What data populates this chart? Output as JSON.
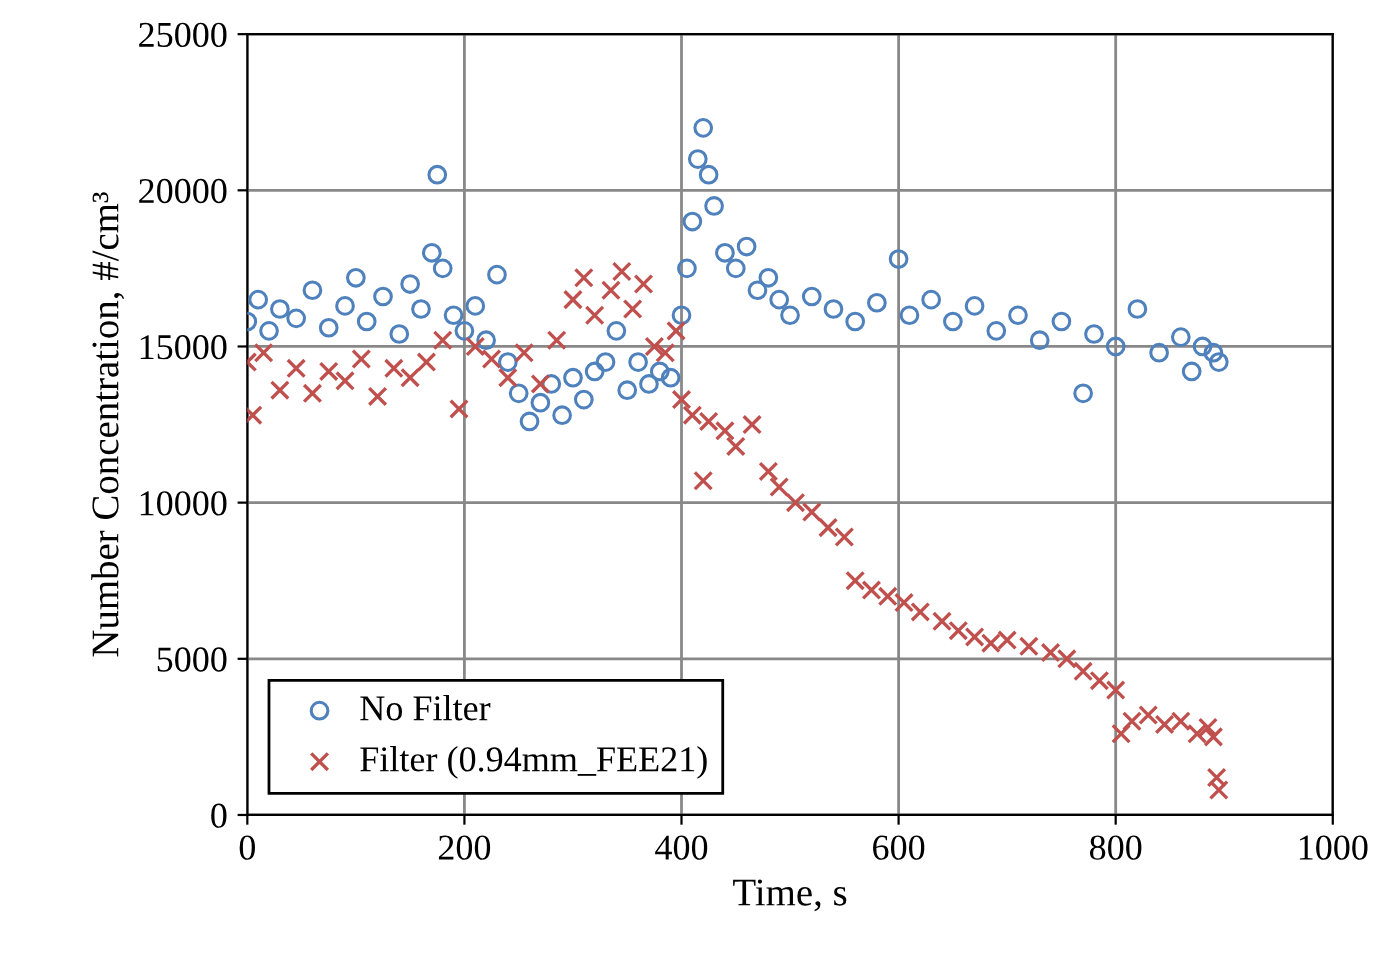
{
  "chart_data": {
    "type": "scatter",
    "xlabel": "Time, s",
    "ylabel": "Number Concentration, #/cm³",
    "xlim": [
      0,
      1000
    ],
    "xticks": [
      0,
      200,
      400,
      600,
      800,
      1000
    ],
    "ylim": [
      0,
      25000
    ],
    "yticks": [
      0,
      5000,
      10000,
      15000,
      20000,
      25000
    ],
    "grid": true,
    "legend": "bottom left",
    "series": [
      {
        "name": "No Filter",
        "color": "#4f81bd",
        "marker": "circle",
        "x": [
          0,
          10,
          20,
          30,
          45,
          60,
          75,
          90,
          100,
          110,
          125,
          140,
          150,
          160,
          170,
          175,
          180,
          190,
          200,
          210,
          220,
          230,
          240,
          250,
          260,
          270,
          280,
          290,
          300,
          310,
          320,
          330,
          340,
          350,
          360,
          370,
          380,
          390,
          400,
          405,
          410,
          415,
          420,
          425,
          430,
          440,
          450,
          460,
          470,
          480,
          490,
          500,
          520,
          540,
          560,
          580,
          600,
          610,
          630,
          650,
          670,
          690,
          710,
          730,
          750,
          770,
          780,
          800,
          820,
          840,
          860,
          870,
          880,
          890,
          895
        ],
        "values": [
          15800,
          16500,
          15500,
          16200,
          15900,
          16800,
          15600,
          16300,
          17200,
          15800,
          16600,
          15400,
          17000,
          16200,
          18000,
          20500,
          17500,
          16000,
          15500,
          16300,
          15200,
          17300,
          14500,
          13500,
          12600,
          13200,
          13800,
          12800,
          14000,
          13300,
          14200,
          14500,
          15500,
          13600,
          14500,
          13800,
          14200,
          14000,
          16000,
          17500,
          19000,
          21000,
          22000,
          20500,
          19500,
          18000,
          17500,
          18200,
          16800,
          17200,
          16500,
          16000,
          16600,
          16200,
          15800,
          16400,
          17800,
          16000,
          16500,
          15800,
          16300,
          15500,
          16000,
          15200,
          15800,
          13500,
          15400,
          15000,
          16200,
          14800,
          15300,
          14200,
          15000,
          14800,
          14500
        ]
      },
      {
        "name": "Filter (0.94mm_FEE21)",
        "color": "#c0504d",
        "marker": "cross",
        "x": [
          0,
          5,
          15,
          30,
          45,
          60,
          75,
          90,
          105,
          120,
          135,
          150,
          165,
          180,
          195,
          210,
          225,
          240,
          255,
          270,
          285,
          300,
          310,
          320,
          335,
          345,
          355,
          365,
          375,
          385,
          395,
          400,
          410,
          420,
          425,
          440,
          450,
          465,
          480,
          490,
          505,
          520,
          535,
          550,
          560,
          575,
          590,
          605,
          620,
          640,
          655,
          670,
          685,
          700,
          720,
          740,
          755,
          770,
          785,
          800,
          805,
          815,
          830,
          845,
          860,
          875,
          885,
          890,
          893,
          895
        ],
        "values": [
          14500,
          12800,
          14800,
          13600,
          14300,
          13500,
          14200,
          13900,
          14600,
          13400,
          14300,
          14000,
          14500,
          15200,
          13000,
          15000,
          14600,
          14000,
          14800,
          13800,
          15200,
          16500,
          17200,
          16000,
          16800,
          17400,
          16200,
          17000,
          15000,
          14800,
          15500,
          13300,
          12800,
          10700,
          12600,
          12300,
          11800,
          12500,
          11000,
          10500,
          10000,
          9700,
          9200,
          8900,
          7500,
          7200,
          7000,
          6800,
          6500,
          6200,
          5900,
          5700,
          5500,
          5600,
          5400,
          5200,
          5000,
          4600,
          4300,
          4000,
          2600,
          3000,
          3200,
          2900,
          3000,
          2600,
          2800,
          2500,
          1200,
          800
        ]
      }
    ]
  }
}
